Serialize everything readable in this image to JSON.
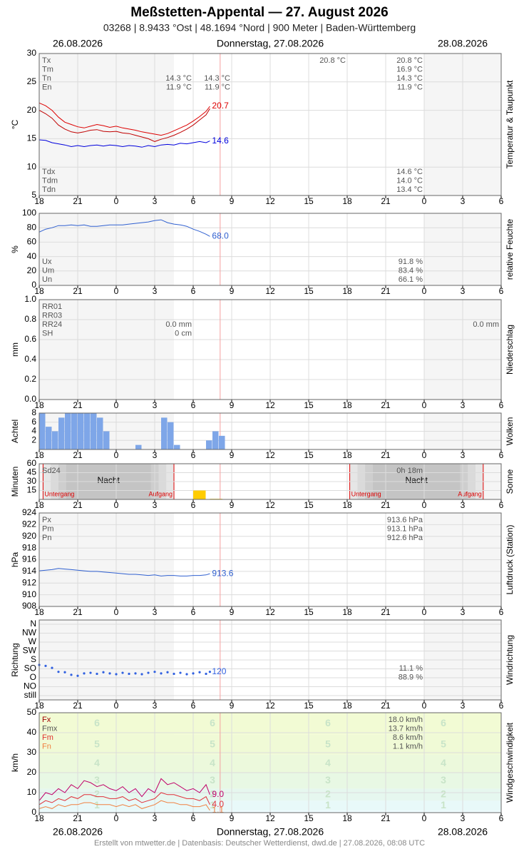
{
  "header": {
    "title": "Meßstetten-Appental  —  27. August 2026",
    "subtitle": "03268  |  8.9433 °Ost  |  48.1694 °Nord  |  900 Meter  |  Baden-Württemberg",
    "dates": [
      "26.08.2026",
      "Donnerstag, 27.08.2026",
      "28.08.2026"
    ]
  },
  "footer": "Erstellt von mtwetter.de | Datenbasis: Deutscher Wetterdienst, dwd.de | 27.08.2026, 08:08 UTC",
  "x_axis": {
    "xlim": [
      0,
      36
    ],
    "now": 14.1,
    "xticks": [
      {
        "value": 0,
        "label": "18"
      },
      {
        "value": 3,
        "label": "21"
      },
      {
        "value": 6,
        "label": "0"
      },
      {
        "value": 9,
        "label": "3"
      },
      {
        "value": 12,
        "label": "6"
      },
      {
        "value": 15,
        "label": "9"
      },
      {
        "value": 18,
        "label": "12"
      },
      {
        "value": 21,
        "label": "15"
      },
      {
        "value": 24,
        "label": "18"
      },
      {
        "value": 27,
        "label": "21"
      },
      {
        "value": 30,
        "label": "0"
      },
      {
        "value": 33,
        "label": "3"
      },
      {
        "value": 36,
        "label": "6"
      }
    ]
  },
  "chart_data": [
    {
      "type": "line",
      "ylabel": "°C",
      "side_label": "Temperatur & Taupunkt",
      "ylim": [
        5,
        30
      ],
      "yticks": [
        5,
        10,
        15,
        20,
        25,
        30
      ],
      "x": [
        0,
        0.5,
        1,
        1.5,
        2,
        2.5,
        3,
        3.5,
        4,
        4.5,
        5,
        5.5,
        6,
        6.5,
        7,
        7.5,
        8,
        8.5,
        9,
        9.5,
        10,
        10.5,
        11,
        11.5,
        12,
        12.5,
        13,
        13.3
      ],
      "series": [
        {
          "color": "#dd0000",
          "show_end": true,
          "values": [
            21.3,
            20.8,
            20.0,
            18.8,
            17.9,
            17.5,
            17.1,
            16.9,
            17.2,
            17.5,
            17.3,
            17.0,
            17.2,
            16.9,
            16.7,
            16.5,
            16.2,
            16.0,
            15.8,
            15.6,
            15.9,
            16.4,
            16.9,
            17.4,
            18.1,
            18.9,
            19.8,
            20.7
          ]
        },
        {
          "color": "#c00000",
          "values": [
            20.0,
            19.4,
            18.6,
            17.4,
            16.7,
            16.2,
            16.0,
            16.2,
            16.5,
            16.6,
            16.3,
            16.2,
            16.3,
            16.0,
            15.9,
            15.6,
            15.3,
            15.0,
            14.5,
            14.9,
            15.2,
            15.6,
            16.1,
            16.7,
            17.4,
            18.3,
            19.2,
            20.3
          ]
        },
        {
          "color": "#0000dd",
          "show_end": true,
          "values": [
            14.8,
            14.7,
            14.3,
            14.1,
            13.9,
            13.6,
            13.8,
            13.6,
            13.8,
            13.9,
            13.7,
            13.9,
            13.8,
            13.6,
            13.8,
            13.7,
            13.5,
            13.8,
            13.6,
            13.9,
            14.0,
            13.9,
            14.2,
            14.1,
            14.3,
            14.5,
            14.3,
            14.6
          ]
        }
      ],
      "stats_top": [
        {
          "label": "Tx",
          "values": [
            null,
            null,
            "20.8 °C",
            "20.8 °C",
            null
          ]
        },
        {
          "label": "Tm",
          "values": [
            null,
            null,
            null,
            "16.9 °C",
            null
          ]
        },
        {
          "label": "Tn",
          "values": [
            "14.3 °C",
            "14.3 °C",
            null,
            "14.3 °C",
            null
          ]
        },
        {
          "label": "En",
          "values": [
            "11.9 °C",
            "11.9 °C",
            null,
            "11.9 °C",
            null
          ]
        }
      ],
      "stats_bottom": [
        {
          "label": "Tdx",
          "values": [
            null,
            null,
            null,
            "14.6 °C",
            null
          ]
        },
        {
          "label": "Tdm",
          "values": [
            null,
            null,
            null,
            "14.0 °C",
            null
          ]
        },
        {
          "label": "Tdn",
          "values": [
            null,
            null,
            null,
            "13.4 °C",
            null
          ]
        }
      ]
    },
    {
      "type": "line",
      "ylabel": "%",
      "side_label": "relative Feuchte",
      "ylim": [
        0,
        100
      ],
      "yticks": [
        0,
        20,
        40,
        60,
        80,
        100
      ],
      "x": [
        0,
        0.5,
        1,
        1.5,
        2,
        2.5,
        3,
        3.5,
        4,
        4.5,
        5,
        5.5,
        6,
        6.5,
        7,
        7.5,
        8,
        8.5,
        9,
        9.5,
        10,
        10.5,
        11,
        11.5,
        12,
        12.5,
        13,
        13.3
      ],
      "series": [
        {
          "color": "#3060d0",
          "show_end": true,
          "end_label": "68.0",
          "values": [
            74,
            78,
            80,
            83,
            83,
            84,
            83,
            84,
            82,
            82,
            83,
            84,
            84,
            84,
            85,
            86,
            87,
            88,
            90,
            91,
            87,
            85,
            84,
            82,
            78,
            75,
            71,
            68
          ]
        }
      ],
      "stats_bottom": [
        {
          "label": "Ux",
          "values": [
            null,
            null,
            null,
            "91.8 %",
            null
          ]
        },
        {
          "label": "Um",
          "values": [
            null,
            null,
            null,
            "83.4 %",
            null
          ]
        },
        {
          "label": "Un",
          "values": [
            null,
            null,
            null,
            "66.1 %",
            null
          ]
        }
      ]
    },
    {
      "type": "line",
      "ylabel": "mm",
      "side_label": "Niederschlag",
      "ylim": [
        0,
        1
      ],
      "yticks": [
        {
          "value": 0,
          "label": "0.0"
        },
        0.2,
        0.4,
        0.6,
        0.8,
        {
          "value": 1,
          "label": "1.0"
        }
      ],
      "x": [],
      "series": [],
      "stats_top": [
        {
          "label": "RR01",
          "values": [
            null,
            null,
            null,
            null,
            null
          ]
        },
        {
          "label": "RR03",
          "values": [
            null,
            null,
            null,
            null,
            null
          ]
        },
        {
          "label": "RR24",
          "values": [
            "0.0 mm",
            null,
            null,
            null,
            "0.0 mm"
          ]
        },
        {
          "label": "SH",
          "values": [
            "0 cm",
            null,
            null,
            null,
            null
          ]
        }
      ]
    },
    {
      "type": "bar",
      "ylabel": "Achtel",
      "side_label": "Wolken",
      "ylim": [
        0,
        8
      ],
      "yticks": [
        2,
        4,
        6,
        8
      ],
      "bar_width": 0.5,
      "color": "#7ea6e8",
      "x": [
        0,
        0.5,
        1,
        1.5,
        2,
        2.5,
        3,
        3.5,
        4,
        4.5,
        5,
        5.5,
        6,
        6.5,
        7,
        7.5,
        8,
        8.5,
        9,
        9.5,
        10,
        10.5,
        11,
        11.5,
        12,
        12.5,
        13,
        13.5,
        14
      ],
      "values": [
        8,
        5,
        4,
        7,
        8,
        8,
        8,
        8,
        8,
        7,
        4,
        0,
        0,
        0,
        0,
        1,
        0,
        0,
        0,
        7,
        6,
        1,
        0,
        0,
        0,
        0,
        2,
        4,
        3
      ]
    },
    {
      "type": "bar",
      "ylabel": "Minuten",
      "side_label": "Sonne",
      "ylim": [
        0,
        60
      ],
      "yticks": [
        15,
        30,
        45,
        60
      ],
      "bar_width": 1,
      "color": "#ffcc00",
      "x": [
        12,
        13.3
      ],
      "values": [
        15,
        1
      ],
      "nights": [
        [
          0.3,
          10.5
        ],
        [
          24.2,
          34.6
        ]
      ],
      "night_label": "Nacht",
      "sunset_label": "Untergang",
      "sunrise_label": "Aufgang",
      "stats_top": [
        {
          "label": "Sd24",
          "values": [
            null,
            null,
            null,
            "0h 18m",
            null
          ]
        }
      ]
    },
    {
      "type": "line",
      "ylabel": "hPa",
      "side_label": "Luftdruck (Station)",
      "ylim": [
        908,
        924
      ],
      "yticks": [
        908,
        910,
        912,
        914,
        916,
        918,
        920,
        922,
        924
      ],
      "x": [
        0,
        0.5,
        1,
        1.5,
        2,
        2.5,
        3,
        3.5,
        4,
        4.5,
        5,
        5.5,
        6,
        6.5,
        7,
        7.5,
        8,
        8.5,
        9,
        9.5,
        10,
        10.5,
        11,
        11.5,
        12,
        12.5,
        13,
        13.3
      ],
      "series": [
        {
          "color": "#3060d0",
          "show_end": true,
          "values": [
            914.1,
            914.2,
            914.3,
            914.5,
            914.4,
            914.3,
            914.2,
            914.1,
            914.0,
            914.0,
            913.9,
            913.8,
            913.7,
            913.6,
            913.5,
            913.5,
            913.4,
            913.3,
            913.4,
            913.2,
            913.3,
            913.3,
            913.2,
            913.2,
            913.3,
            913.3,
            913.4,
            913.6
          ]
        }
      ],
      "stats_top": [
        {
          "label": "Px",
          "values": [
            null,
            null,
            null,
            "913.6 hPa",
            null
          ]
        },
        {
          "label": "Pm",
          "values": [
            null,
            null,
            null,
            "913.1 hPa",
            null
          ]
        },
        {
          "label": "Pn",
          "values": [
            null,
            null,
            null,
            "912.6 hPa",
            null
          ]
        }
      ]
    },
    {
      "type": "scatter",
      "ylabel": "Richtung",
      "side_label": "Windrichtung",
      "ylim": [
        0,
        360
      ],
      "yticks": [
        {
          "value": 0,
          "label": "still"
        },
        {
          "value": 45,
          "label": "NO"
        },
        {
          "value": 90,
          "label": "O"
        },
        {
          "value": 135,
          "label": "SO"
        },
        {
          "value": 180,
          "label": "S"
        },
        {
          "value": 225,
          "label": "SW"
        },
        {
          "value": 270,
          "label": "W"
        },
        {
          "value": 315,
          "label": "NW"
        },
        {
          "value": 360,
          "label": "N"
        }
      ],
      "x": [
        0,
        0.5,
        1,
        1.5,
        2,
        2.5,
        3,
        3.5,
        4,
        4.5,
        5,
        5.5,
        6,
        6.5,
        7,
        7.5,
        8,
        8.5,
        9,
        9.5,
        10,
        10.5,
        11,
        11.5,
        12,
        12.5,
        13,
        13.3
      ],
      "series": [
        {
          "color": "#3060e0",
          "show_end": true,
          "values": [
            155,
            150,
            140,
            120,
            118,
            105,
            100,
            112,
            115,
            110,
            118,
            112,
            108,
            115,
            110,
            112,
            108,
            115,
            120,
            112,
            118,
            110,
            115,
            108,
            112,
            118,
            110,
            120
          ]
        }
      ],
      "stats_mid": [
        {
          "values": [
            null,
            null,
            null,
            "11.1 %",
            null
          ]
        },
        {
          "values": [
            null,
            null,
            null,
            "88.9 %",
            null
          ]
        }
      ]
    },
    {
      "type": "line",
      "ylabel": "km/h",
      "side_label": "Windgeschwindigkeit",
      "ylim": [
        0,
        50
      ],
      "yticks": [
        0,
        10,
        20,
        30,
        40,
        50
      ],
      "beaufort": [
        1,
        2,
        3,
        4,
        5,
        6
      ],
      "beaufort_bounds": [
        0,
        1,
        6,
        12,
        20,
        29,
        39,
        50
      ],
      "x": [
        0,
        0.5,
        1,
        1.5,
        2,
        2.5,
        3,
        3.5,
        4,
        4.5,
        5,
        5.5,
        6,
        6.5,
        7,
        7.5,
        8,
        8.5,
        9,
        9.5,
        10,
        10.5,
        11,
        11.5,
        12,
        12.5,
        13,
        13.3
      ],
      "series": [
        {
          "color": "#c0006a",
          "show_end": true,
          "end_label": "9.0",
          "values": [
            6,
            10,
            9,
            12,
            10,
            14,
            12,
            16,
            15,
            13,
            14,
            12,
            11,
            13,
            10,
            12,
            8,
            12,
            10,
            17,
            14,
            15,
            13,
            11,
            12,
            10,
            14,
            9
          ]
        },
        {
          "color": "#e0303a",
          "show_end": true,
          "end_label": "4.0",
          "values": [
            4,
            6,
            5,
            7,
            6,
            8,
            7,
            9,
            9,
            8,
            8,
            7,
            7,
            8,
            6,
            7,
            5,
            6,
            7,
            10,
            9,
            9,
            8,
            7,
            7,
            6,
            8,
            4
          ]
        },
        {
          "color": "#f08040",
          "show_end": true,
          "values": [
            2,
            3,
            2,
            4,
            3,
            4,
            4,
            5,
            5,
            4,
            4,
            4,
            3,
            4,
            3,
            4,
            2,
            3,
            4,
            6,
            5,
            5,
            4,
            4,
            3,
            3,
            4,
            1.1
          ]
        }
      ],
      "stats_top": [
        {
          "label": "Fx",
          "color": "#a00000",
          "values": [
            null,
            null,
            null,
            "18.0 km/h",
            null
          ]
        },
        {
          "label": "Fmx",
          "color": "#555",
          "values": [
            null,
            null,
            null,
            "13.7 km/h",
            null
          ]
        },
        {
          "label": "Fm",
          "color": "#e03030",
          "values": [
            null,
            null,
            null,
            "8.6 km/h",
            null
          ]
        },
        {
          "label": "Fn",
          "color": "#f08040",
          "values": [
            null,
            null,
            null,
            "1.1 km/h",
            null
          ]
        }
      ]
    }
  ]
}
